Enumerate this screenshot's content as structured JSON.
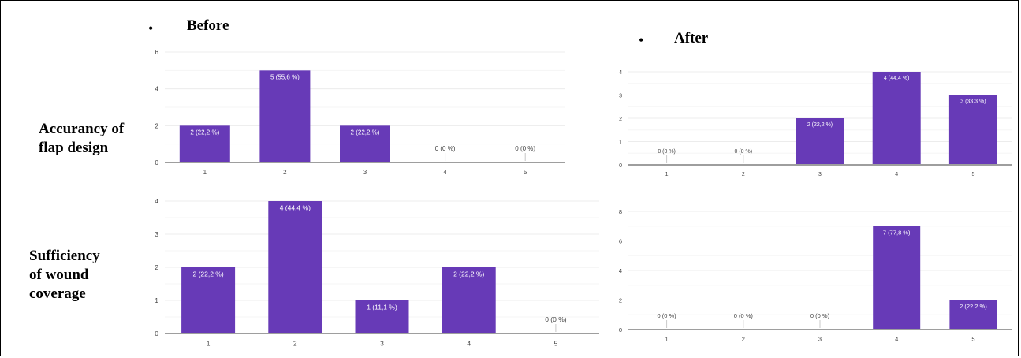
{
  "headers": {
    "before": "Before",
    "after": "After",
    "bullet": "•"
  },
  "rows": [
    {
      "lines": [
        "Accurancy of",
        "flap design"
      ]
    },
    {
      "lines": [
        "Sufficiency",
        "of wound",
        "coverage"
      ]
    }
  ],
  "colors": {
    "bar": "#673ab7",
    "axis": "#9e9e9e",
    "grid": "#ececec",
    "tick": "#444444"
  },
  "chart_data": [
    {
      "type": "bar",
      "title": "",
      "categories": [
        "1",
        "2",
        "3",
        "4",
        "5"
      ],
      "values": [
        2,
        5,
        2,
        0,
        0
      ],
      "labels": [
        "2 (22,2 %)",
        "5 (55,6 %)",
        "2 (22,2 %)",
        "0 (0 %)",
        "0 (0 %)"
      ],
      "yticks": [
        0,
        2,
        4,
        6
      ],
      "ylim": [
        0,
        6
      ]
    },
    {
      "type": "bar",
      "title": "",
      "categories": [
        "1",
        "2",
        "3",
        "4",
        "5"
      ],
      "values": [
        0,
        0,
        2,
        4,
        3
      ],
      "labels": [
        "0 (0 %)",
        "0 (0 %)",
        "2 (22,2 %)",
        "4 (44,4 %)",
        "3 (33,3 %)"
      ],
      "yticks": [
        0,
        1,
        2,
        3,
        4
      ],
      "ylim": [
        0,
        4
      ]
    },
    {
      "type": "bar",
      "title": "",
      "categories": [
        "1",
        "2",
        "3",
        "4",
        "5"
      ],
      "values": [
        2,
        4,
        1,
        2,
        0
      ],
      "labels": [
        "2 (22,2 %)",
        "4 (44,4 %)",
        "1 (11,1 %)",
        "2 (22,2 %)",
        "0 (0 %)"
      ],
      "yticks": [
        0,
        1,
        2,
        3,
        4
      ],
      "ylim": [
        0,
        4
      ]
    },
    {
      "type": "bar",
      "title": "",
      "categories": [
        "1",
        "2",
        "3",
        "4",
        "5"
      ],
      "values": [
        0,
        0,
        0,
        7,
        2
      ],
      "labels": [
        "0 (0 %)",
        "0 (0 %)",
        "0 (0 %)",
        "7 (77,8 %)",
        "2 (22,2 %)"
      ],
      "yticks": [
        0,
        2,
        4,
        6,
        8
      ],
      "ylim": [
        0,
        8
      ]
    }
  ]
}
